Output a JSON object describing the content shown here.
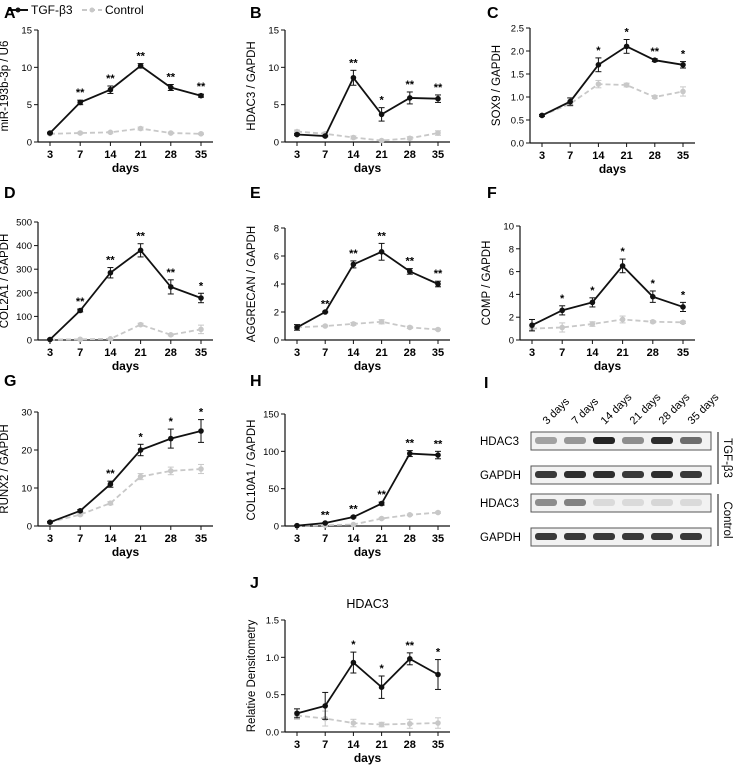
{
  "legend": {
    "tgf_label": "TGF-β3",
    "control_label": "Control"
  },
  "colors": {
    "tgf": "#111111",
    "control": "#c8c8c8",
    "axis": "#111111"
  },
  "chart_data": [
    {
      "id": "A",
      "type": "line",
      "panel_letter": "A",
      "ylabel": "miR-193b-3p / U6",
      "xlabel": "days",
      "x": [
        "3",
        "7",
        "14",
        "21",
        "28",
        "35"
      ],
      "ylim": [
        0,
        15
      ],
      "yticks": [
        0,
        5,
        10,
        15
      ],
      "series": [
        {
          "name": "TGF-β3",
          "values": [
            1.2,
            5.3,
            7.0,
            10.2,
            7.3,
            6.2
          ],
          "errors": [
            0.1,
            0.3,
            0.5,
            0.3,
            0.4,
            0.2
          ]
        },
        {
          "name": "Control",
          "values": [
            1.1,
            1.2,
            1.3,
            1.8,
            1.2,
            1.1
          ],
          "errors": [
            0.1,
            0.1,
            0.1,
            0.2,
            0.1,
            0.1
          ]
        }
      ],
      "annotations": [
        "",
        "**",
        "**",
        "**",
        "**",
        "**"
      ]
    },
    {
      "id": "B",
      "type": "line",
      "panel_letter": "B",
      "ylabel": "HDAC3 / GAPDH",
      "xlabel": "days",
      "x": [
        "3",
        "7",
        "14",
        "21",
        "28",
        "35"
      ],
      "ylim": [
        0,
        15
      ],
      "yticks": [
        0,
        5,
        10,
        15
      ],
      "series": [
        {
          "name": "TGF-β3",
          "values": [
            1.0,
            0.8,
            8.6,
            3.7,
            5.9,
            5.8
          ],
          "errors": [
            0.1,
            0.1,
            1.0,
            0.9,
            0.8,
            0.5
          ]
        },
        {
          "name": "Control",
          "values": [
            1.4,
            1.1,
            0.6,
            0.2,
            0.5,
            1.2
          ],
          "errors": [
            0.2,
            0.2,
            0.2,
            0.1,
            0.2,
            0.3
          ]
        }
      ],
      "annotations": [
        "",
        "",
        "**",
        "*",
        "**",
        "**"
      ]
    },
    {
      "id": "C",
      "type": "line",
      "panel_letter": "C",
      "ylabel": "SOX9 / GAPDH",
      "xlabel": "days",
      "x": [
        "3",
        "7",
        "14",
        "21",
        "28",
        "35"
      ],
      "ylim": [
        0,
        2.5
      ],
      "yticks": [
        0,
        0.5,
        1.0,
        1.5,
        2.0,
        2.5
      ],
      "series": [
        {
          "name": "TGF-β3",
          "values": [
            0.6,
            0.9,
            1.7,
            2.1,
            1.8,
            1.7
          ],
          "errors": [
            0.02,
            0.08,
            0.15,
            0.15,
            0.03,
            0.07
          ]
        },
        {
          "name": "Control",
          "values": [
            0.6,
            0.85,
            1.28,
            1.26,
            1.0,
            1.12
          ],
          "errors": [
            0.02,
            0.05,
            0.08,
            0.04,
            0.03,
            0.1
          ]
        }
      ],
      "annotations": [
        "",
        "",
        "*",
        "*",
        "**",
        "*"
      ]
    },
    {
      "id": "D",
      "type": "line",
      "panel_letter": "D",
      "ylabel": "COL2A1 / GAPDH",
      "xlabel": "days",
      "x": [
        "3",
        "7",
        "14",
        "21",
        "28",
        "35"
      ],
      "ylim": [
        0,
        500
      ],
      "yticks": [
        0,
        100,
        200,
        300,
        400,
        500
      ],
      "series": [
        {
          "name": "TGF-β3",
          "values": [
            2,
            125,
            285,
            380,
            225,
            178
          ],
          "errors": [
            2,
            6,
            22,
            28,
            30,
            20
          ]
        },
        {
          "name": "Control",
          "values": [
            2,
            3,
            5,
            65,
            22,
            45
          ],
          "errors": [
            1,
            1,
            2,
            6,
            4,
            18
          ]
        }
      ],
      "annotations": [
        "",
        "**",
        "**",
        "**",
        "**",
        "*"
      ]
    },
    {
      "id": "E",
      "type": "line",
      "panel_letter": "E",
      "ylabel": "AGGRECAN / GAPDH",
      "xlabel": "days",
      "x": [
        "3",
        "7",
        "14",
        "21",
        "28",
        "35"
      ],
      "ylim": [
        0,
        8
      ],
      "yticks": [
        0,
        2,
        4,
        6,
        8
      ],
      "series": [
        {
          "name": "TGF-β3",
          "values": [
            0.9,
            2.0,
            5.4,
            6.3,
            4.9,
            4.0
          ],
          "errors": [
            0.2,
            0.05,
            0.25,
            0.6,
            0.2,
            0.2
          ]
        },
        {
          "name": "Control",
          "values": [
            0.9,
            1.0,
            1.15,
            1.3,
            0.9,
            0.75
          ],
          "errors": [
            0.1,
            0.05,
            0.1,
            0.15,
            0.08,
            0.05
          ]
        }
      ],
      "annotations": [
        "",
        "**",
        "**",
        "**",
        "**",
        "**"
      ]
    },
    {
      "id": "F",
      "type": "line",
      "panel_letter": "F",
      "ylabel": "COMP / GAPDH",
      "xlabel": "days",
      "x": [
        "3",
        "7",
        "14",
        "21",
        "28",
        "35"
      ],
      "ylim": [
        0,
        10
      ],
      "yticks": [
        0,
        2,
        4,
        6,
        8,
        10
      ],
      "series": [
        {
          "name": "TGF-β3",
          "values": [
            1.3,
            2.6,
            3.3,
            6.5,
            3.8,
            2.9
          ],
          "errors": [
            0.5,
            0.4,
            0.4,
            0.6,
            0.5,
            0.4
          ]
        },
        {
          "name": "Control",
          "values": [
            1.0,
            1.1,
            1.4,
            1.8,
            1.6,
            1.55
          ],
          "errors": [
            0.2,
            0.4,
            0.2,
            0.3,
            0.1,
            0.1
          ]
        }
      ],
      "annotations": [
        "",
        "*",
        "*",
        "*",
        "*",
        "*"
      ]
    },
    {
      "id": "G",
      "type": "line",
      "panel_letter": "G",
      "ylabel": "RUNX2 / GAPDH",
      "xlabel": "days",
      "x": [
        "3",
        "7",
        "14",
        "21",
        "28",
        "35"
      ],
      "ylim": [
        0,
        30
      ],
      "yticks": [
        0,
        10,
        20,
        30
      ],
      "series": [
        {
          "name": "TGF-β3",
          "values": [
            1,
            4,
            11,
            20,
            23,
            25
          ],
          "errors": [
            0.2,
            0.3,
            0.8,
            1.5,
            2.5,
            3
          ]
        },
        {
          "name": "Control",
          "values": [
            1,
            3,
            6,
            13,
            14.5,
            15
          ],
          "errors": [
            0.2,
            0.3,
            0.4,
            0.8,
            1,
            1.2
          ]
        }
      ],
      "annotations": [
        "",
        "",
        "**",
        "*",
        "*",
        "*"
      ]
    },
    {
      "id": "H",
      "type": "line",
      "panel_letter": "H",
      "ylabel": "COL10A1 / GAPDH",
      "xlabel": "days",
      "x": [
        "3",
        "7",
        "14",
        "21",
        "28",
        "35"
      ],
      "ylim": [
        0,
        150
      ],
      "yticks": [
        0,
        50,
        100,
        150
      ],
      "series": [
        {
          "name": "TGF-β3",
          "values": [
            0.5,
            4,
            12,
            30,
            97,
            95
          ],
          "errors": [
            0.3,
            0.5,
            1,
            2,
            4,
            5
          ]
        },
        {
          "name": "Control",
          "values": [
            0.5,
            1,
            2,
            10,
            15,
            18
          ],
          "errors": [
            0.2,
            0.3,
            0.4,
            1,
            1,
            1
          ]
        }
      ],
      "annotations": [
        "",
        "**",
        "**",
        "**",
        "**",
        "**"
      ]
    },
    {
      "id": "J",
      "type": "line",
      "panel_letter": "J",
      "title": "HDAC3",
      "ylabel": "Relative Densitometry",
      "xlabel": "days",
      "x": [
        "3",
        "7",
        "14",
        "21",
        "28",
        "35"
      ],
      "ylim": [
        0,
        1.5
      ],
      "yticks": [
        0,
        0.5,
        1.0,
        1.5
      ],
      "series": [
        {
          "name": "TGF-β3",
          "values": [
            0.25,
            0.35,
            0.93,
            0.6,
            0.98,
            0.77
          ],
          "errors": [
            0.06,
            0.18,
            0.14,
            0.15,
            0.08,
            0.2
          ]
        },
        {
          "name": "Control",
          "values": [
            0.22,
            0.18,
            0.12,
            0.1,
            0.11,
            0.12
          ],
          "errors": [
            0.05,
            0.1,
            0.05,
            0.03,
            0.06,
            0.07
          ]
        }
      ],
      "annotations": [
        "",
        "",
        "*",
        "*",
        "**",
        "*"
      ]
    }
  ],
  "blot": {
    "panel_letter": "I",
    "lanes": [
      "3 days",
      "7 days",
      "14 days",
      "21 days",
      "28 days",
      "35 days"
    ],
    "groups": [
      {
        "label": "TGF-β3",
        "rows": [
          {
            "label": "HDAC3",
            "intensities": [
              0.35,
              0.4,
              0.95,
              0.45,
              0.9,
              0.6
            ]
          },
          {
            "label": "GAPDH",
            "intensities": [
              0.85,
              0.9,
              0.9,
              0.85,
              0.9,
              0.85
            ]
          }
        ]
      },
      {
        "label": "Control",
        "rows": [
          {
            "label": "HDAC3",
            "intensities": [
              0.45,
              0.5,
              0.08,
              0.08,
              0.1,
              0.08
            ]
          },
          {
            "label": "GAPDH",
            "intensities": [
              0.85,
              0.85,
              0.85,
              0.85,
              0.85,
              0.85
            ]
          }
        ]
      }
    ]
  }
}
